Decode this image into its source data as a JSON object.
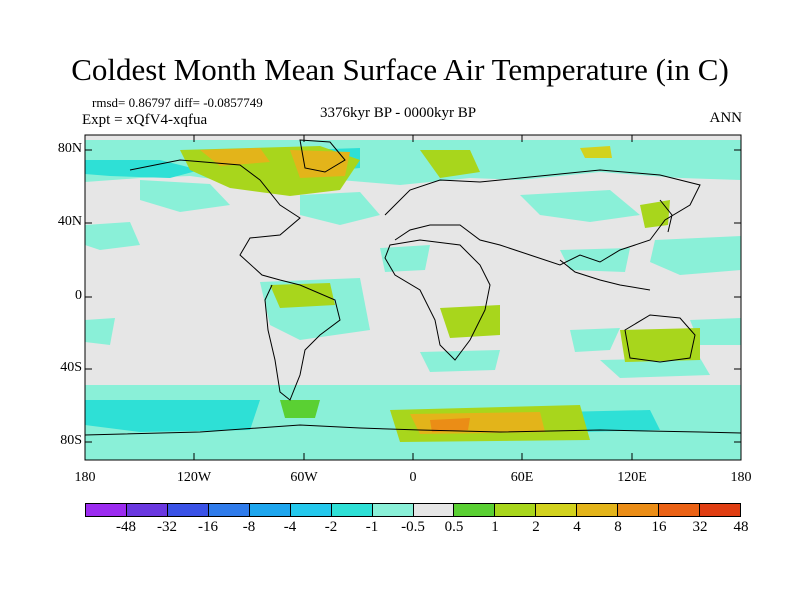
{
  "title": "Coldest Month Mean Surface Air Temperature (in C)",
  "stats_line": "rmsd= 0.86797 diff= -0.0857749",
  "experiment": "Expt = xQfV4-xqfua",
  "period": "3376kyr BP - 0000kyr BP",
  "season": "ANN",
  "map": {
    "projection": "cylindrical-equidistant",
    "ocean_land_background": "#e6e6e6",
    "coastline_color": "#000000",
    "lat_ticks": [
      "80N",
      "40N",
      "0",
      "40S",
      "80S"
    ],
    "lon_ticks": [
      "180",
      "120W",
      "60W",
      "0",
      "60E",
      "120E",
      "180"
    ]
  },
  "colorbar": {
    "colors": [
      "#9c2cf0",
      "#6a38e0",
      "#3a52e6",
      "#2f7bea",
      "#1ea6ee",
      "#24c8ec",
      "#2ee0d6",
      "#8af0d8",
      "#e6e6e6",
      "#5ad033",
      "#a8d61c",
      "#d2d21e",
      "#e3b41a",
      "#eb8d16",
      "#eb6215",
      "#e03e12"
    ],
    "labels": [
      "-48",
      "-32",
      "-16",
      "-8",
      "-4",
      "-2",
      "-1",
      "-0.5",
      "0.5",
      "1",
      "2",
      "4",
      "8",
      "16",
      "32",
      "48"
    ]
  }
}
